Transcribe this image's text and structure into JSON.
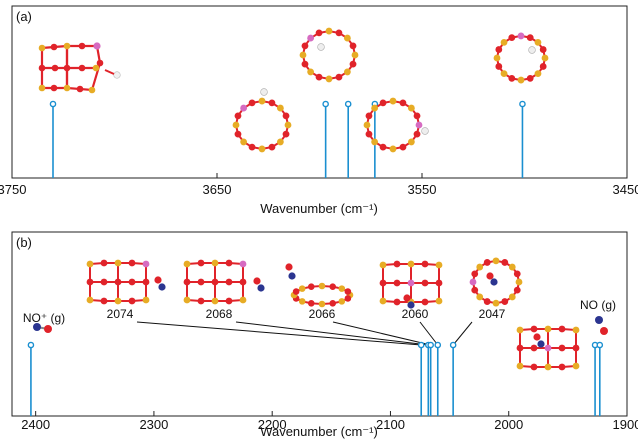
{
  "chart_data": [
    {
      "panel_label": "(a)",
      "type": "bar",
      "xlabel": "Wavenumber (cm⁻¹)",
      "xlim": [
        3750,
        3450
      ],
      "x_ticks": [
        "3750",
        "3650",
        "3550",
        "3450"
      ],
      "tick_values": [
        3750,
        3650,
        3550,
        3450
      ],
      "stick_height": 1.0,
      "sticks": [
        {
          "x": 3730,
          "y": 1.0
        },
        {
          "x": 3597,
          "y": 1.0
        },
        {
          "x": 3586,
          "y": 1.0
        },
        {
          "x": 3573,
          "y": 1.0
        },
        {
          "x": 3501,
          "y": 1.0
        }
      ],
      "structures": [
        {
          "kind": "cage-double-ring",
          "silicon_count": 1,
          "hydrogen": true
        },
        {
          "kind": "ring-8",
          "silicon_count": 1,
          "hydrogen": true
        },
        {
          "kind": "ring-8",
          "silicon_count": 1,
          "hydrogen": true
        },
        {
          "kind": "ring-8",
          "silicon_count": 1,
          "hydrogen": true
        },
        {
          "kind": "ring-8",
          "silicon_count": 1,
          "hydrogen": true
        }
      ]
    },
    {
      "panel_label": "(b)",
      "type": "bar",
      "xlabel": "Wavenumber (cm⁻¹)",
      "xlim": [
        2420,
        1900
      ],
      "x_ticks": [
        "2400",
        "2300",
        "2200",
        "2100",
        "2000",
        "1900"
      ],
      "tick_values": [
        2400,
        2300,
        2200,
        2100,
        2000,
        1900
      ],
      "stick_height": 1.0,
      "sticks": [
        {
          "x": 2404,
          "y": 1.0
        },
        {
          "x": 2074,
          "y": 1.0
        },
        {
          "x": 2068,
          "y": 1.0
        },
        {
          "x": 2066,
          "y": 1.0
        },
        {
          "x": 2060,
          "y": 1.0
        },
        {
          "x": 2047,
          "y": 1.0
        },
        {
          "x": 1927,
          "y": 1.0
        },
        {
          "x": 1923,
          "y": 1.0
        }
      ],
      "annotations": [
        {
          "label": "2074",
          "x": 2074
        },
        {
          "label": "2068",
          "x": 2068
        },
        {
          "label": "2066",
          "x": 2066
        },
        {
          "label": "2060",
          "x": 2060
        },
        {
          "label": "2047",
          "x": 2047
        }
      ],
      "gas_labels": [
        {
          "label": "NO⁺ (g)",
          "x": 2404
        },
        {
          "label": "NO (g)",
          "x": 1925
        }
      ]
    }
  ],
  "colors": {
    "stick": "#1a8fd0",
    "oxygen": "#e0232a",
    "silicon": "#e7ac25",
    "aluminum": "#d66bc1",
    "hydrogen": "#eeeeee",
    "nitrogen": "#2b3590",
    "frame": "#222222"
  }
}
